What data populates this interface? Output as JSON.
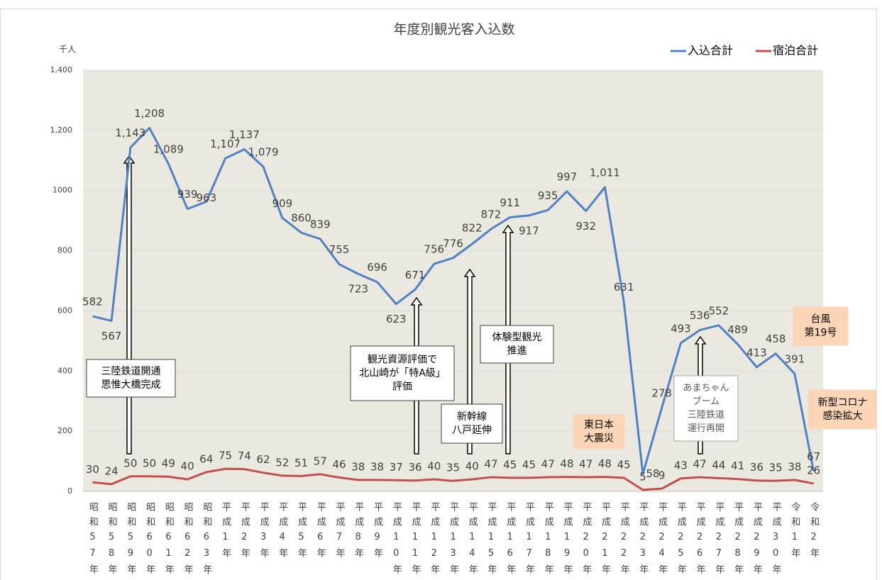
{
  "chart_data": {
    "type": "line",
    "title": "年度別観光客入込数",
    "y_unit": "千人",
    "categories": [
      "昭和57年",
      "昭和58年",
      "昭和59年",
      "昭和60年",
      "昭和61年",
      "昭和62年",
      "昭和63年",
      "平成1年",
      "平成2年",
      "平成3年",
      "平成4年",
      "平成5年",
      "平成6年",
      "平成7年",
      "平成8年",
      "平成9年",
      "平成10年",
      "平成11年",
      "平成12年",
      "平成13年",
      "平成14年",
      "平成15年",
      "平成16年",
      "平成17年",
      "平成18年",
      "平成19年",
      "平成20年",
      "平成21年",
      "平成22年",
      "平成23年",
      "平成24年",
      "平成25年",
      "平成26年",
      "平成27年",
      "平成28年",
      "平成29年",
      "平成30年",
      "令和1年",
      "令和2年"
    ],
    "series": [
      {
        "name": "入込合計",
        "color": "#4f81c7",
        "values": [
          582,
          567,
          1143,
          1208,
          1089,
          939,
          963,
          1107,
          1137,
          1079,
          909,
          860,
          839,
          755,
          723,
          696,
          623,
          671,
          756,
          776,
          822,
          872,
          911,
          917,
          935,
          997,
          932,
          1011,
          631,
          58,
          278,
          493,
          536,
          552,
          489,
          413,
          458,
          391,
          67
        ]
      },
      {
        "name": "宿泊合計",
        "color": "#c0504d",
        "values": [
          30,
          24,
          50,
          50,
          49,
          40,
          64,
          75,
          74,
          62,
          52,
          51,
          57,
          46,
          38,
          38,
          37,
          36,
          40,
          35,
          40,
          47,
          45,
          45,
          47,
          48,
          47,
          48,
          45,
          5,
          9,
          43,
          47,
          44,
          41,
          36,
          35,
          38,
          26
        ]
      }
    ],
    "ylim": [
      0,
      1400
    ],
    "yticks": [
      0,
      200,
      400,
      600,
      800,
      1000,
      {
        "value": 1200,
        "label": "1,200"
      },
      {
        "value": 1400,
        "label": "1,400"
      }
    ],
    "value_labels_series0": [
      "582",
      "567",
      "1,143",
      "1,208",
      "1,089",
      "939",
      "963",
      "1,107",
      "1,137",
      "1,079",
      "909",
      "860",
      "839",
      "755",
      "723",
      "696",
      "623",
      "671",
      "756",
      "776",
      "822",
      "872",
      "911",
      "917",
      "935",
      "997",
      "932",
      "1,011",
      "631",
      "58",
      "278",
      "493",
      "536",
      "552",
      "489",
      "413",
      "458",
      "391",
      "67"
    ],
    "plot_background": "#ebe9df",
    "legend": "top-right",
    "annotations": [
      {
        "lines": [
          "三陸鉄道開通",
          "思惟大橋完成"
        ],
        "style": "plain"
      },
      {
        "lines": [
          "観光資源評価で",
          "北山崎が「特A級」",
          "評価"
        ],
        "style": "plain"
      },
      {
        "lines": [
          "新幹線",
          "八戸延伸"
        ],
        "style": "plain"
      },
      {
        "lines": [
          "体験型観光",
          "推進"
        ],
        "style": "plain"
      },
      {
        "lines": [
          "東日本",
          "大震災"
        ],
        "style": "highlight"
      },
      {
        "lines": [
          "あまちゃん",
          "ブーム",
          "三陸鉄道",
          "運行再開"
        ],
        "style": "soft"
      },
      {
        "lines": [
          "台風",
          "第19号"
        ],
        "style": "highlight"
      },
      {
        "lines": [
          "新型コロナ",
          "感染拡大"
        ],
        "style": "highlight"
      }
    ]
  }
}
